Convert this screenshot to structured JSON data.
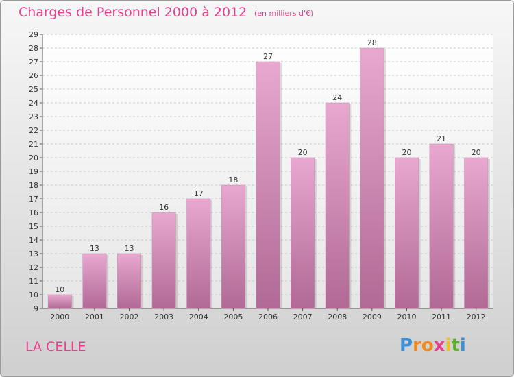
{
  "title": "Charges de Personnel 2000 à 2012",
  "subtitle": "(en milliers d'€)",
  "place": "LA CELLE",
  "logo": {
    "letters": [
      "P",
      "r",
      "o",
      "x",
      "i",
      "t",
      "i"
    ],
    "colors": [
      "#3a8fd8",
      "#f08a1c",
      "#f08a1c",
      "#e8408c",
      "#f0c020",
      "#5bb030",
      "#3a8fd8"
    ]
  },
  "colors": {
    "title": "#e8408c",
    "bar_top": "#e8a8cf",
    "bar_bottom": "#b06a95"
  },
  "chart_data": {
    "type": "bar",
    "categories": [
      "2000",
      "2001",
      "2002",
      "2003",
      "2004",
      "2005",
      "2006",
      "2007",
      "2008",
      "2009",
      "2010",
      "2011",
      "2012"
    ],
    "values": [
      10,
      13,
      13,
      16,
      17,
      18,
      27,
      20,
      24,
      28,
      20,
      21,
      20
    ],
    "ylim": [
      9,
      29
    ],
    "yticks": [
      9,
      10,
      11,
      12,
      13,
      14,
      15,
      16,
      17,
      18,
      19,
      20,
      21,
      22,
      23,
      24,
      25,
      26,
      27,
      28,
      29
    ],
    "grid": "horizontal dashed"
  }
}
